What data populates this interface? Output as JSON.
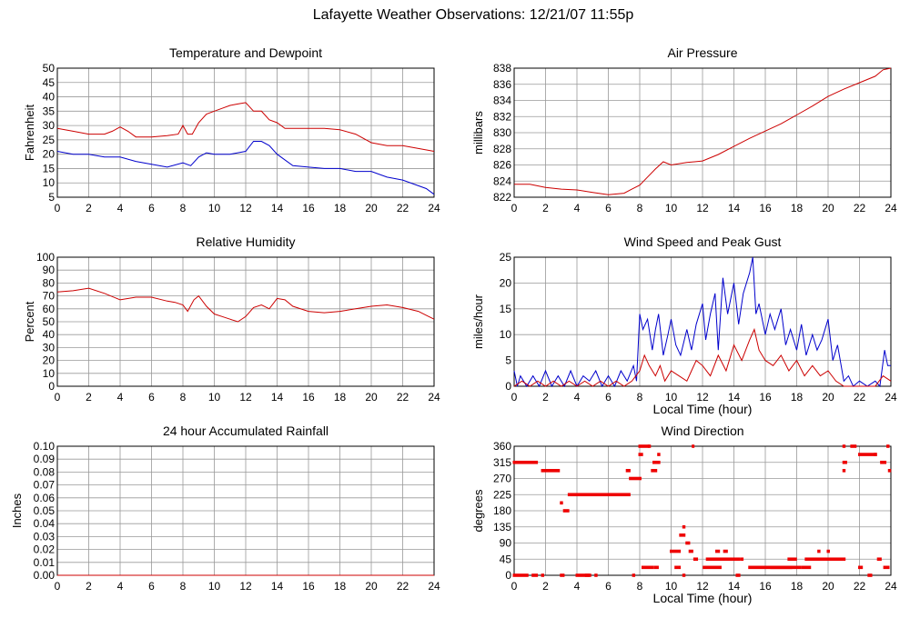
{
  "page": {
    "title": "Lafayette Weather Observations: 12/21/07 11:55p"
  },
  "chart_data": [
    {
      "type": "line",
      "title": "Temperature and Dewpoint",
      "xlabel": "",
      "ylabel": "Fahrenheit",
      "xlim": [
        0,
        24
      ],
      "ylim": [
        5,
        50
      ],
      "xticks": [
        0,
        2,
        4,
        6,
        8,
        10,
        12,
        14,
        16,
        18,
        20,
        22,
        24
      ],
      "yticks": [
        5,
        10,
        15,
        20,
        25,
        30,
        35,
        40,
        45,
        50
      ],
      "grid": true,
      "series": [
        {
          "color": "#cc0000",
          "x": [
            0,
            1,
            2,
            3,
            3.5,
            4,
            4.5,
            5,
            6,
            7,
            7.7,
            8,
            8.3,
            8.6,
            9,
            9.5,
            10,
            10.5,
            11,
            11.5,
            12,
            12.5,
            13,
            13.5,
            14,
            14.5,
            15,
            16,
            17,
            18,
            19,
            20,
            21,
            22,
            23,
            24
          ],
          "y": [
            29,
            28,
            27,
            27,
            28,
            29.5,
            28,
            26,
            26,
            26.5,
            27,
            30,
            27,
            27,
            31,
            34,
            35,
            36,
            37,
            37.5,
            38,
            35,
            35,
            32,
            31,
            29,
            29,
            29,
            29,
            28.5,
            27,
            24,
            23,
            23,
            22,
            21
          ]
        },
        {
          "color": "#0000cc",
          "x": [
            0,
            1,
            2,
            3,
            4,
            5,
            6,
            7,
            8,
            8.5,
            9,
            9.5,
            10,
            11,
            12,
            12.5,
            13,
            13.5,
            14,
            15,
            16,
            17,
            18,
            19,
            20,
            21,
            22,
            23,
            23.5,
            24
          ],
          "y": [
            21,
            20,
            20,
            19,
            19,
            17.5,
            16.5,
            15.5,
            17,
            16,
            19,
            20.5,
            20,
            20,
            21,
            24.5,
            24.5,
            23,
            20,
            16,
            15.5,
            15,
            15,
            14,
            14,
            12,
            11,
            9,
            8,
            6
          ]
        }
      ]
    },
    {
      "type": "line",
      "title": "Air Pressure",
      "xlabel": "",
      "ylabel": "millibars",
      "xlim": [
        0,
        24
      ],
      "ylim": [
        822,
        838
      ],
      "xticks": [
        0,
        2,
        4,
        6,
        8,
        10,
        12,
        14,
        16,
        18,
        20,
        22,
        24
      ],
      "yticks": [
        822,
        824,
        826,
        828,
        830,
        832,
        834,
        836,
        838
      ],
      "grid": true,
      "series": [
        {
          "color": "#cc0000",
          "x": [
            0,
            1,
            2,
            3,
            4,
            5,
            6,
            7,
            7.5,
            8,
            8.5,
            9,
            9.5,
            10,
            11,
            12,
            13,
            14,
            15,
            16,
            17,
            18,
            19,
            20,
            21,
            22,
            23,
            23.5,
            24
          ],
          "y": [
            823.6,
            823.6,
            823.2,
            823,
            822.9,
            822.6,
            822.3,
            822.5,
            823,
            823.5,
            824.5,
            825.5,
            826.4,
            826,
            826.3,
            826.5,
            827.3,
            828.3,
            829.3,
            830.2,
            831.1,
            832.2,
            833.3,
            834.5,
            835.4,
            836.2,
            837,
            837.8,
            838
          ]
        }
      ]
    },
    {
      "type": "line",
      "title": "Relative Humidity",
      "xlabel": "",
      "ylabel": "Percent",
      "xlim": [
        0,
        24
      ],
      "ylim": [
        0,
        100
      ],
      "xticks": [
        0,
        2,
        4,
        6,
        8,
        10,
        12,
        14,
        16,
        18,
        20,
        22,
        24
      ],
      "yticks": [
        0,
        10,
        20,
        30,
        40,
        50,
        60,
        70,
        80,
        90,
        100
      ],
      "grid": true,
      "series": [
        {
          "color": "#cc0000",
          "x": [
            0,
            1,
            2,
            3,
            4,
            5,
            6,
            7,
            7.5,
            8,
            8.3,
            8.7,
            9,
            9.5,
            10,
            10.5,
            11,
            11.5,
            12,
            12.5,
            13,
            13.5,
            14,
            14.5,
            15,
            16,
            17,
            18,
            19,
            20,
            21,
            22,
            23,
            23.5,
            24
          ],
          "y": [
            73,
            74,
            76,
            72,
            67,
            69,
            69,
            66,
            65,
            63,
            58,
            67,
            70,
            62,
            56,
            54,
            52,
            50,
            54,
            61,
            63,
            60,
            68,
            67,
            62,
            58,
            57,
            58,
            60,
            62,
            63,
            61,
            58,
            55,
            52
          ]
        }
      ]
    },
    {
      "type": "line",
      "title": "Wind Speed and Peak Gust",
      "xlabel": "Local Time (hour)",
      "ylabel": "miles/hour",
      "xlim": [
        0,
        24
      ],
      "ylim": [
        0,
        25
      ],
      "xticks": [
        0,
        2,
        4,
        6,
        8,
        10,
        12,
        14,
        16,
        18,
        20,
        22,
        24
      ],
      "yticks": [
        0,
        5,
        10,
        15,
        20,
        25
      ],
      "grid": true,
      "series": [
        {
          "color": "#0000cc",
          "x": [
            0,
            0.2,
            0.4,
            0.8,
            1.2,
            1.6,
            2,
            2.4,
            2.8,
            3.2,
            3.6,
            4,
            4.4,
            4.8,
            5.2,
            5.6,
            6,
            6.4,
            6.8,
            7.2,
            7.6,
            7.8,
            8,
            8.2,
            8.5,
            8.8,
            9,
            9.2,
            9.5,
            9.8,
            10,
            10.3,
            10.6,
            11,
            11.3,
            11.6,
            12,
            12.2,
            12.5,
            12.8,
            13,
            13.3,
            13.6,
            14,
            14.3,
            14.6,
            15,
            15.2,
            15.4,
            15.6,
            16,
            16.3,
            16.6,
            17,
            17.3,
            17.6,
            18,
            18.3,
            18.6,
            19,
            19.3,
            19.6,
            20,
            20.3,
            20.6,
            21,
            21.3,
            21.6,
            22,
            22.5,
            23,
            23.3,
            23.6,
            23.8,
            24
          ],
          "y": [
            3,
            0,
            2,
            0,
            2,
            0,
            3,
            0,
            2,
            0,
            3,
            0,
            2,
            1,
            3,
            0,
            2,
            0,
            3,
            1,
            4,
            1,
            14,
            11,
            13,
            7,
            11,
            14,
            6,
            10,
            13,
            8,
            6,
            11,
            7,
            12,
            16,
            9,
            14,
            18,
            7,
            21,
            14,
            20,
            12,
            18,
            22,
            25,
            14,
            16,
            10,
            14,
            11,
            15,
            8,
            11,
            7,
            12,
            6,
            10,
            7,
            9,
            13,
            5,
            8,
            1,
            2,
            0,
            1,
            0,
            1,
            0,
            7,
            4,
            4
          ]
        },
        {
          "color": "#cc0000",
          "x": [
            0,
            0.5,
            1,
            1.5,
            2,
            2.5,
            3,
            3.5,
            4,
            4.5,
            5,
            5.5,
            6,
            6.5,
            7,
            7.5,
            8,
            8.3,
            8.6,
            9,
            9.3,
            9.6,
            10,
            10.5,
            11,
            11.3,
            11.6,
            12,
            12.5,
            13,
            13.5,
            14,
            14.5,
            15,
            15.3,
            15.6,
            16,
            16.5,
            17,
            17.5,
            18,
            18.5,
            19,
            19.5,
            20,
            20.5,
            21,
            22,
            23,
            23.5,
            24
          ],
          "y": [
            0,
            1,
            0,
            1,
            0,
            1,
            0,
            1,
            0,
            1,
            0,
            1,
            0,
            1,
            0,
            1,
            3,
            6,
            4,
            2,
            4,
            1,
            3,
            2,
            1,
            3,
            5,
            4,
            2,
            6,
            3,
            8,
            5,
            9,
            11,
            7,
            5,
            4,
            6,
            3,
            5,
            2,
            4,
            2,
            3,
            1,
            0,
            0,
            0,
            2,
            1
          ]
        }
      ]
    },
    {
      "type": "line",
      "title": "24 hour Accumulated Rainfall",
      "xlabel": "",
      "ylabel": "Inches",
      "xlim": [
        0,
        24
      ],
      "ylim": [
        0,
        0.1
      ],
      "xticks": [
        0,
        2,
        4,
        6,
        8,
        10,
        12,
        14,
        16,
        18,
        20,
        22,
        24
      ],
      "yticks": [
        "0.00",
        "0.01",
        "0.02",
        "0.03",
        "0.04",
        "0.05",
        "0.06",
        "0.07",
        "0.08",
        "0.09",
        "0.10"
      ],
      "grid": true,
      "series": [
        {
          "color": "#cc0000",
          "x": [
            0,
            24
          ],
          "y": [
            0,
            0
          ]
        }
      ]
    },
    {
      "type": "scatter",
      "title": "Wind Direction",
      "xlabel": "Local Time (hour)",
      "ylabel": "degrees",
      "xlim": [
        0,
        24
      ],
      "ylim": [
        0,
        360
      ],
      "xticks": [
        0,
        2,
        4,
        6,
        8,
        10,
        12,
        14,
        16,
        18,
        20,
        22,
        24
      ],
      "yticks": [
        0,
        45,
        90,
        135,
        180,
        225,
        270,
        315,
        360
      ],
      "grid": true,
      "series": [
        {
          "color": "#ee0000",
          "points": [
            [
              0,
              315,
              1.6
            ],
            [
              0,
              0,
              1
            ],
            [
              1.2,
              0,
              0.4
            ],
            [
              1.8,
              0,
              0.2
            ],
            [
              1.8,
              292,
              1.2
            ],
            [
              3,
              0,
              0.3
            ],
            [
              3,
              202,
              0.2
            ],
            [
              3.2,
              180,
              0.4
            ],
            [
              3.5,
              225,
              4
            ],
            [
              4,
              0,
              1
            ],
            [
              4.6,
              0,
              0.3
            ],
            [
              5.2,
              0,
              0.2
            ],
            [
              7.2,
              292,
              0.3
            ],
            [
              7.4,
              270,
              0.8
            ],
            [
              7.6,
              0,
              0.2
            ],
            [
              8,
              360,
              0.7
            ],
            [
              8,
              337,
              0.3
            ],
            [
              8.2,
              22,
              0.8
            ],
            [
              8.6,
              360,
              0.2
            ],
            [
              8.8,
              292,
              0.4
            ],
            [
              8.9,
              315,
              0.5
            ],
            [
              9.2,
              337,
              0.2
            ],
            [
              9,
              22,
              0.3
            ],
            [
              10,
              67,
              0.7
            ],
            [
              10.3,
              22,
              0.4
            ],
            [
              10.6,
              112,
              0.4
            ],
            [
              10.8,
              135,
              0.2
            ],
            [
              11,
              90,
              0.3
            ],
            [
              11.2,
              67,
              0.3
            ],
            [
              10.8,
              0,
              0.2
            ],
            [
              11.5,
              45,
              0.3
            ],
            [
              11.4,
              360,
              0.1
            ],
            [
              12.1,
              22,
              1.2
            ],
            [
              12.3,
              45,
              2.2
            ],
            [
              12.9,
              67,
              0.3
            ],
            [
              13.4,
              67,
              0.3
            ],
            [
              14.5,
              45,
              0.2
            ],
            [
              14.2,
              0,
              0.3
            ],
            [
              15,
              22,
              2.8
            ],
            [
              16.4,
              22,
              2
            ],
            [
              17.5,
              45,
              0.6
            ],
            [
              18.4,
              22,
              0.6
            ],
            [
              18.6,
              45,
              2.6
            ],
            [
              19.4,
              67,
              0.2
            ],
            [
              20,
              67,
              0.2
            ],
            [
              21,
              360,
              0.2
            ],
            [
              21,
              315,
              0.3
            ],
            [
              21,
              292,
              0.2
            ],
            [
              21.5,
              360,
              0.4
            ],
            [
              22,
              337,
              1.2
            ],
            [
              22,
              22,
              0.3
            ],
            [
              22.6,
              0,
              0.3
            ],
            [
              23,
              337,
              0.2
            ],
            [
              23.2,
              45,
              0.3
            ],
            [
              23.4,
              315,
              0.4
            ],
            [
              23.6,
              22,
              0.4
            ],
            [
              23.8,
              360,
              0.2
            ],
            [
              23.9,
              292,
              0.2
            ]
          ]
        }
      ]
    }
  ]
}
